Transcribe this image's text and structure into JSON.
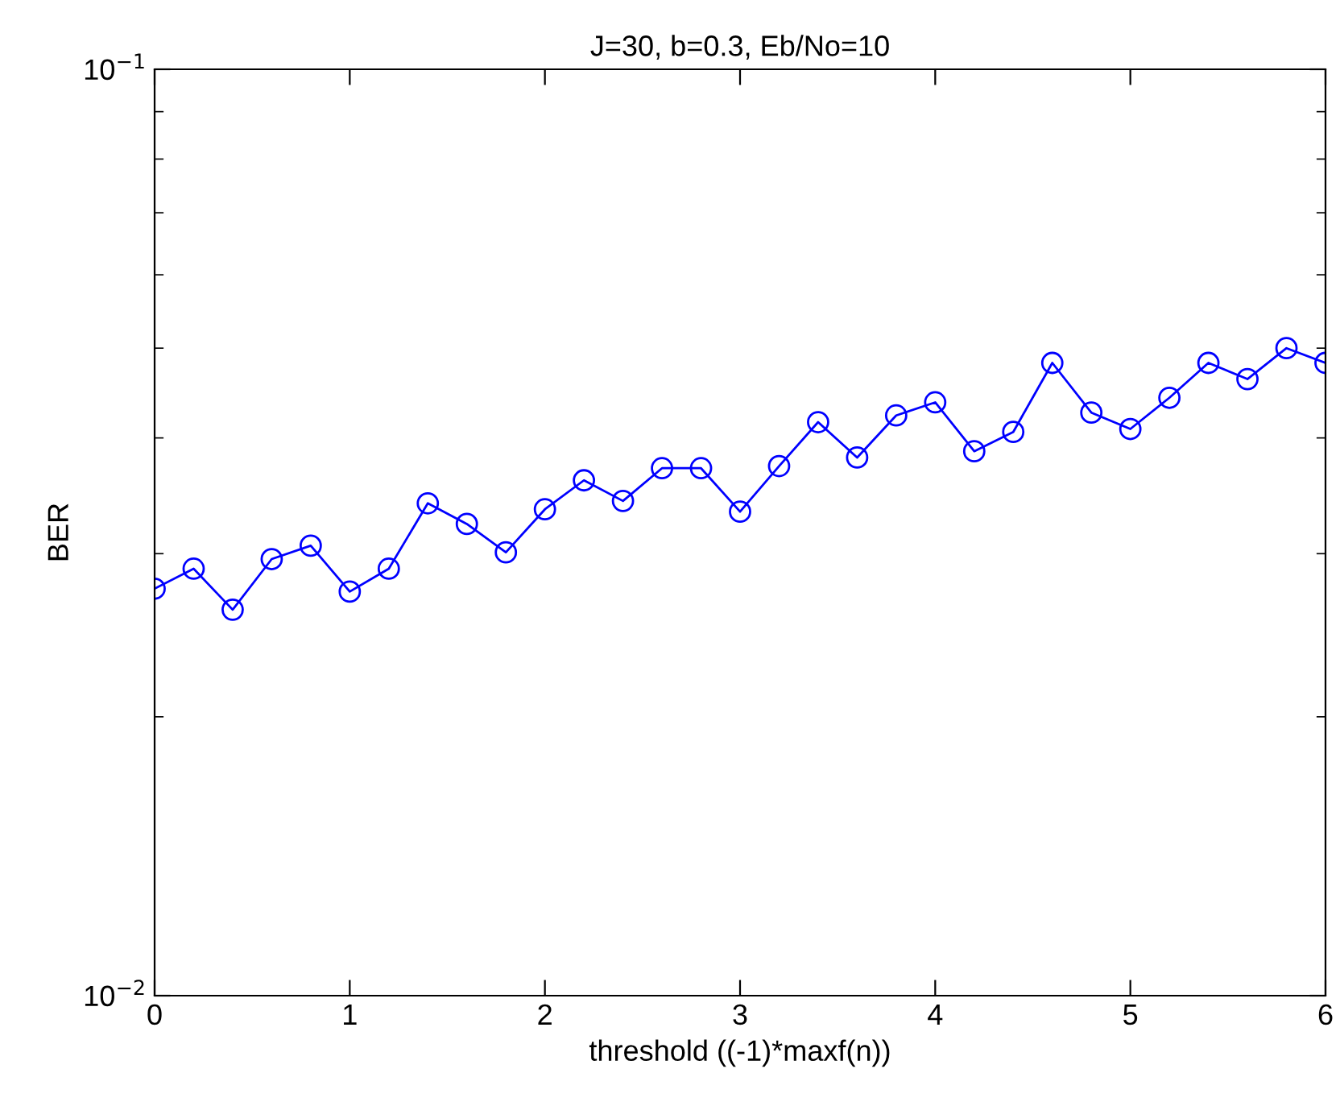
{
  "chart_data": {
    "type": "line",
    "title": "J=30, b=0.3, Eb/No=10",
    "xlabel": "threshold ((-1)*maxf(n))",
    "ylabel": "BER",
    "x": [
      0,
      0.2,
      0.4,
      0.6,
      0.8,
      1.0,
      1.2,
      1.4,
      1.6,
      1.8,
      2.0,
      2.2,
      2.4,
      2.6,
      2.8,
      3.0,
      3.2,
      3.4,
      3.6,
      3.8,
      4.0,
      4.2,
      4.4,
      4.6,
      4.8,
      5.0,
      5.2,
      5.4,
      5.6,
      5.8,
      6.0
    ],
    "series": [
      {
        "color": "#0000ff",
        "values": [
          0.0275,
          0.0289,
          0.0261,
          0.0296,
          0.0306,
          0.0273,
          0.0289,
          0.034,
          0.0323,
          0.0301,
          0.0335,
          0.036,
          0.0342,
          0.0371,
          0.0371,
          0.0333,
          0.0373,
          0.0416,
          0.0381,
          0.0423,
          0.0437,
          0.0387,
          0.0406,
          0.0482,
          0.0426,
          0.0409,
          0.0442,
          0.0482,
          0.0463,
          0.05,
          0.0482
        ]
      }
    ],
    "log": "y",
    "xlim": [
      0,
      6
    ],
    "xticks": [
      0,
      1,
      2,
      3,
      4,
      5,
      6
    ],
    "ylim": [
      0.01,
      0.1
    ],
    "yticks": [
      {
        "value": 0.01,
        "label": "10$^{−2}$"
      },
      {
        "value": 0.1,
        "label": "10$^{−1}$"
      }
    ],
    "marker": "circle",
    "line_style": "solid",
    "grid": false,
    "legend": false
  }
}
